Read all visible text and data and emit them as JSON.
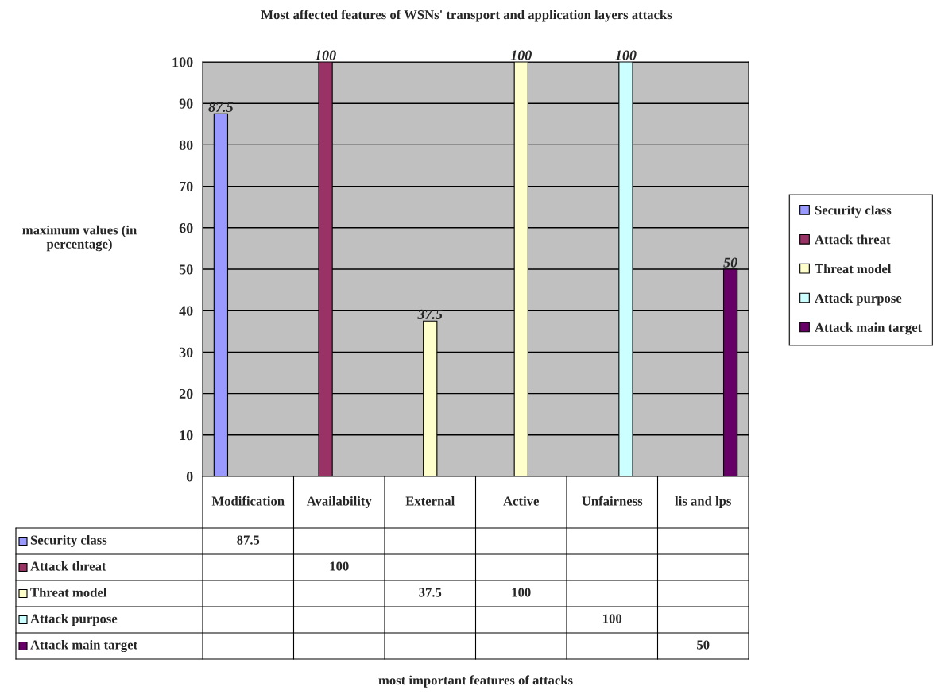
{
  "chart_data": {
    "type": "bar",
    "title": "Most affected features of WSNs' transport and application layers attacks",
    "annotations": [
      "most important features of attacks",
      "87.5",
      "100",
      "37.5",
      "100",
      "100",
      "50"
    ],
    "ylabel": "maximum values (in\npercentage)",
    "categories": [
      "Modification",
      "Availability",
      "External",
      "Active",
      "Unfairness",
      "lis and lps"
    ],
    "series": [
      {
        "name": "Security class",
        "color": "#9999ff",
        "values": [
          87.5,
          null,
          null,
          null,
          null,
          null
        ]
      },
      {
        "name": "Attack threat",
        "color": "#993366",
        "values": [
          null,
          100,
          null,
          null,
          null,
          null
        ]
      },
      {
        "name": "Threat model",
        "color": "#ffffcc",
        "values": [
          null,
          null,
          37.5,
          100,
          null,
          null
        ]
      },
      {
        "name": "Attack purpose",
        "color": "#ccffff",
        "values": [
          null,
          null,
          null,
          null,
          100,
          null
        ]
      },
      {
        "name": "Attack main target",
        "color": "#660066",
        "values": [
          null,
          null,
          null,
          null,
          null,
          50
        ]
      }
    ],
    "ylim": [
      0,
      100
    ],
    "yticks": [
      0,
      10,
      20,
      30,
      40,
      50,
      60,
      70,
      80,
      90,
      100
    ],
    "grid": "y",
    "legend": "right",
    "data_labels": true
  }
}
